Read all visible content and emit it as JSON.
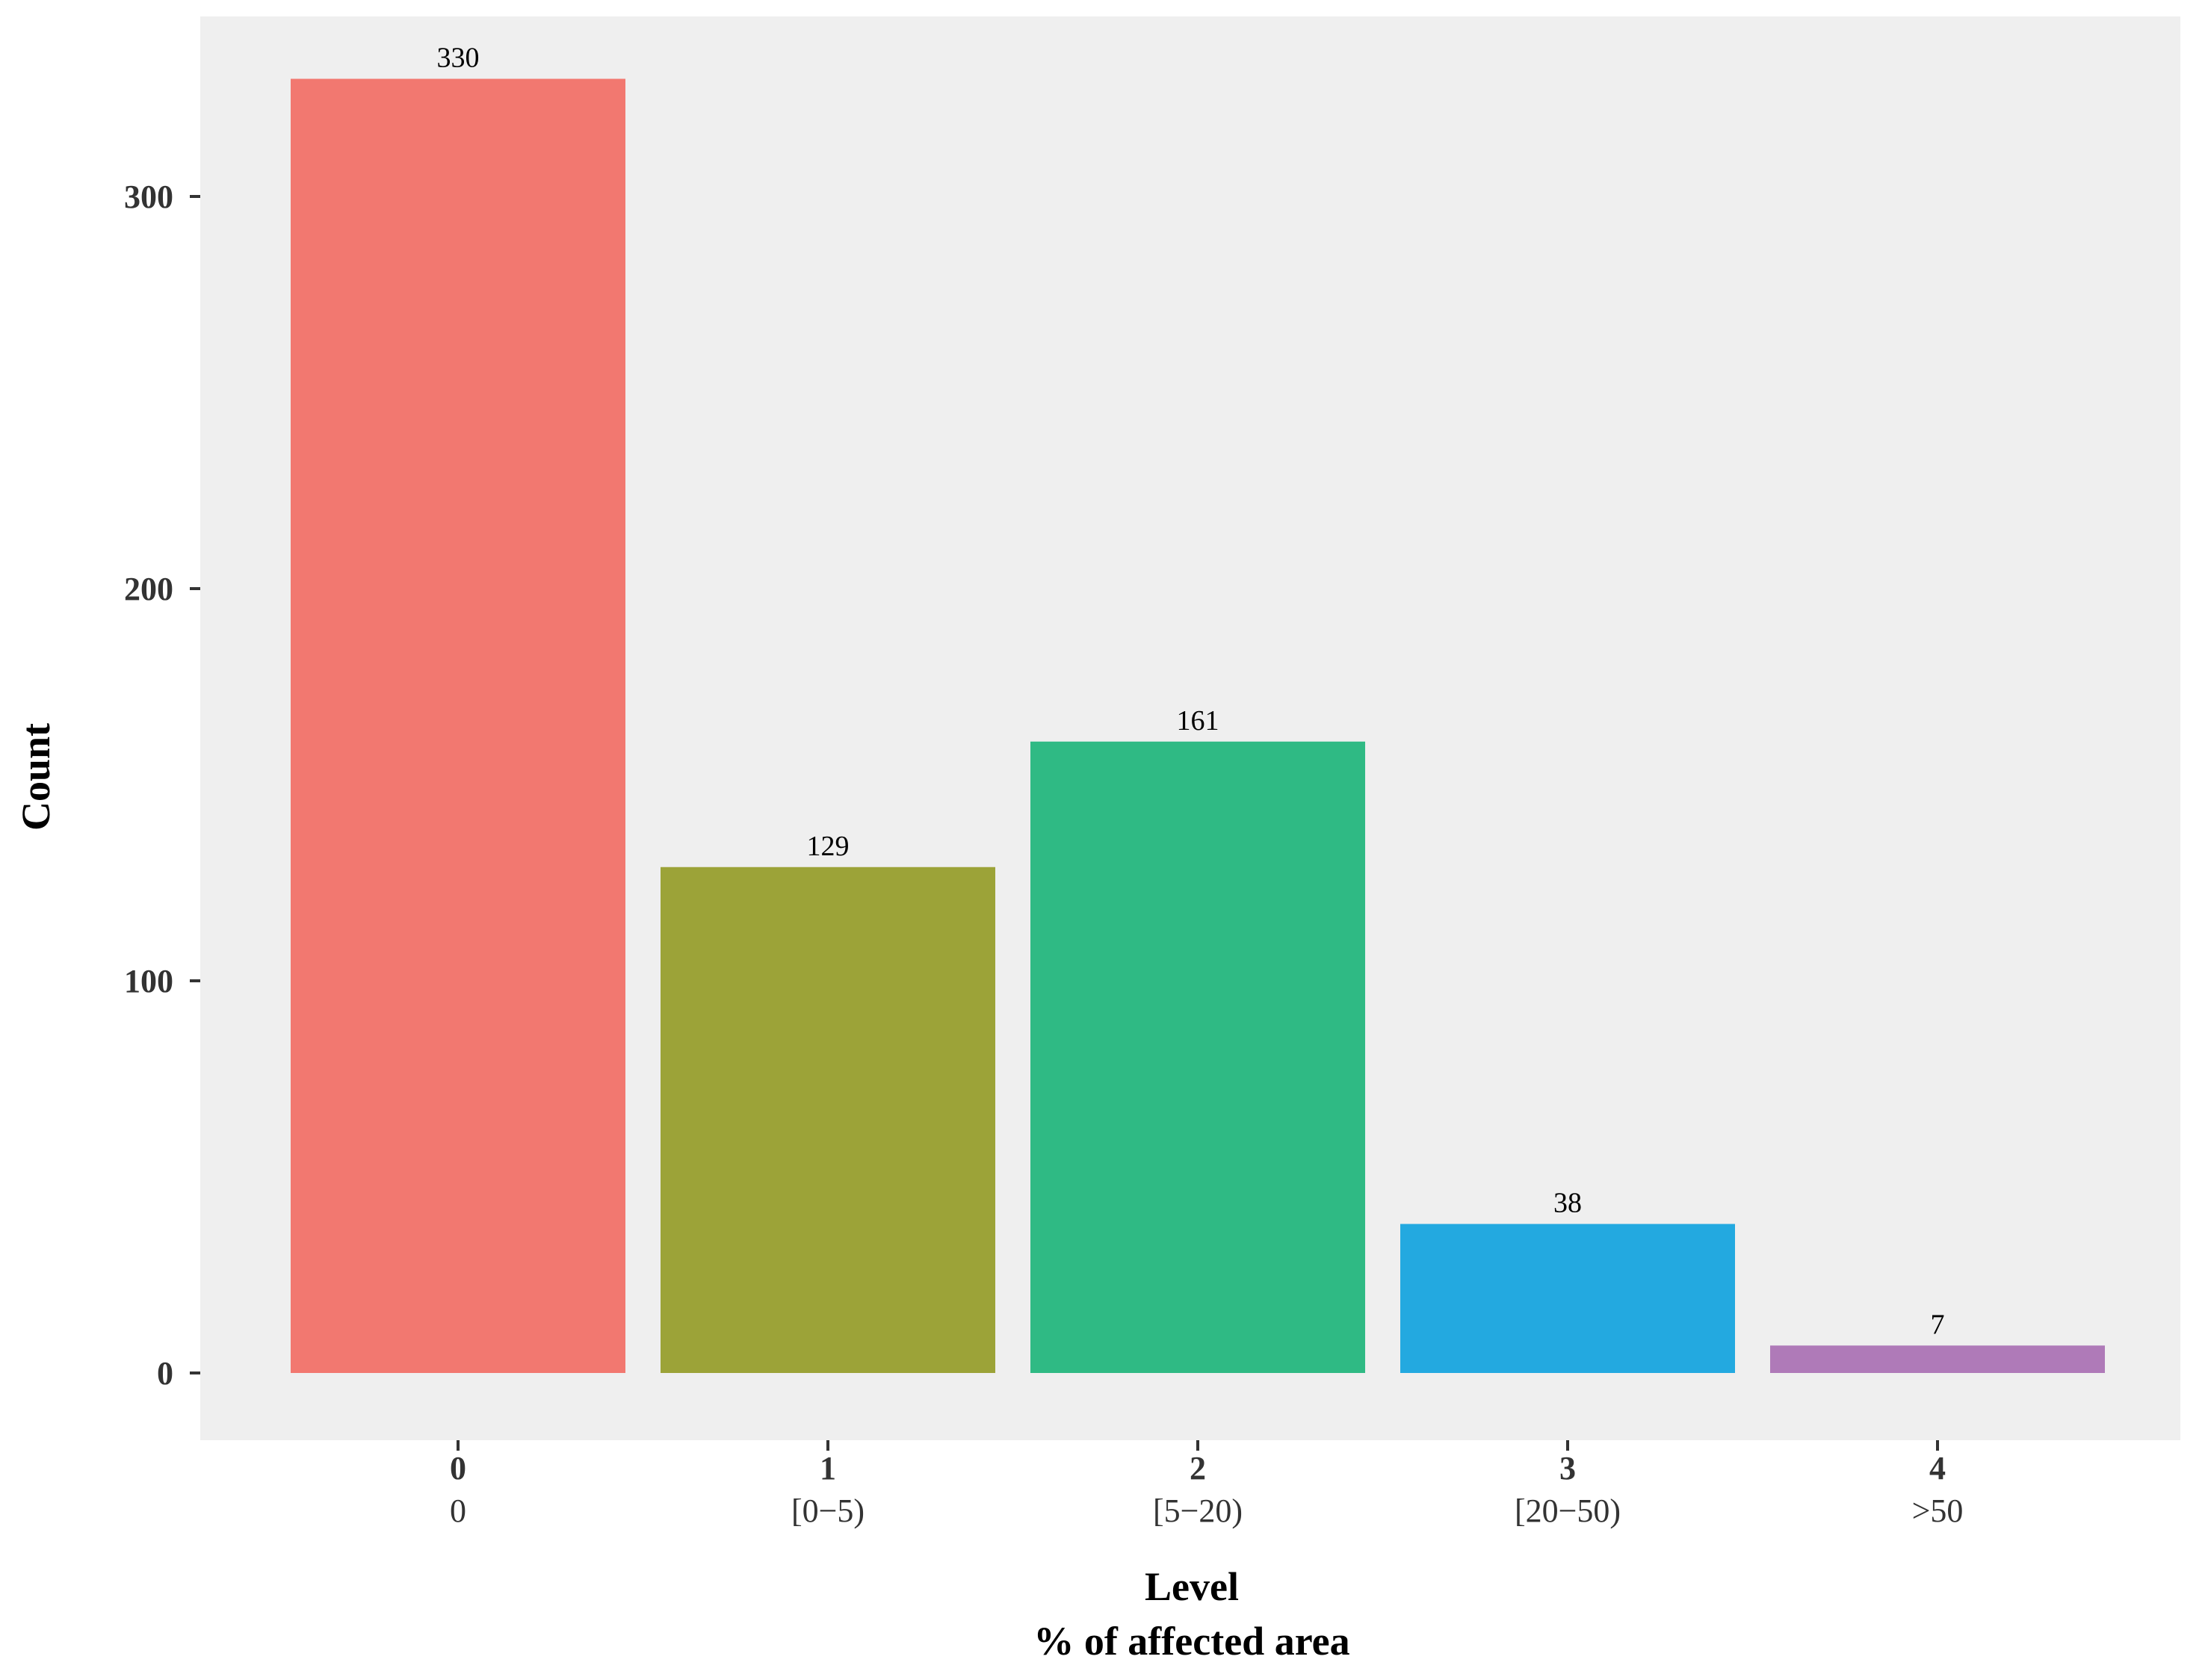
{
  "chart_data": {
    "type": "bar",
    "categories": [
      "0",
      "1",
      "2",
      "3",
      "4"
    ],
    "category_sublabels": [
      "0",
      "[0−5)",
      "[5−20)",
      "[20−50)",
      ">50"
    ],
    "values": [
      330,
      129,
      161,
      38,
      7
    ],
    "bar_colors": [
      "#F27870",
      "#9CA338",
      "#2FBA84",
      "#23A9E0",
      "#AF7AB8"
    ],
    "title": "",
    "xlabel": "Level",
    "xlabel_line2": "% of affected area",
    "ylabel": "Count",
    "ylim": [
      0,
      346
    ],
    "yticks": [
      0,
      100,
      200,
      300
    ],
    "ytick_labels": [
      "0",
      "100",
      "200",
      "300"
    ],
    "grid": false,
    "panel_background": "#EFEFEF"
  }
}
